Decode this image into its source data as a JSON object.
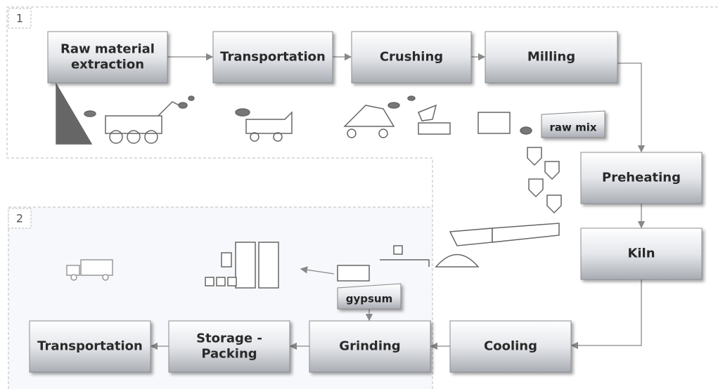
{
  "sections": [
    "1",
    "2"
  ],
  "nodes": [
    {
      "label": "Raw material extraction"
    },
    {
      "label": "Transportation"
    },
    {
      "label": "Crushing"
    },
    {
      "label": "Milling"
    },
    {
      "label": "Preheating"
    },
    {
      "label": "Kiln"
    },
    {
      "label": "Cooling"
    },
    {
      "label": "Grinding"
    },
    {
      "label": "Storage - Packing"
    },
    {
      "label": "Transportation"
    }
  ],
  "materials": [
    "raw mix",
    "gypsum"
  ]
}
